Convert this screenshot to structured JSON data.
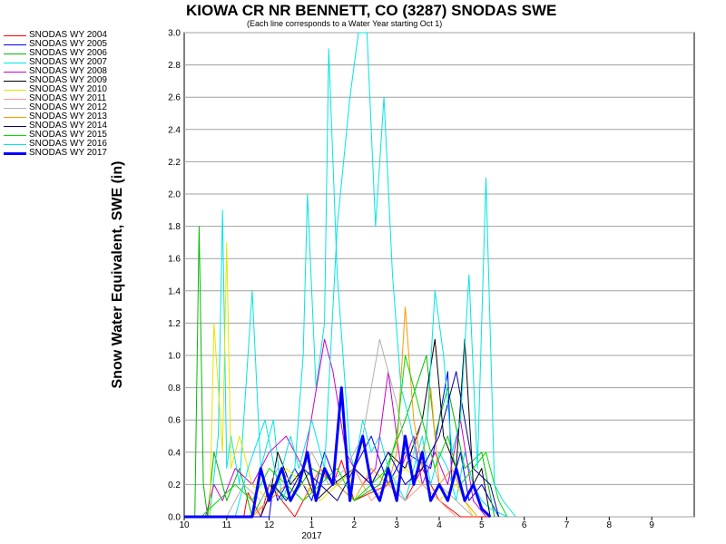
{
  "chart_data": {
    "type": "line",
    "title": "KIOWA CR NR BENNETT, CO (3287) SNODAS SWE",
    "subtitle": "(Each line corresponds to a Water Year starting Oct 1)",
    "ylabel": "Snow Water Equivalent, SWE (in)",
    "xlabel": "",
    "year_label": "2017",
    "ylim": [
      0,
      3.0
    ],
    "xlim": [
      10,
      22
    ],
    "grid": true,
    "legend_position": "left",
    "y_ticks": [
      "0.0",
      "0.2",
      "0.4",
      "0.6",
      "0.8",
      "1.0",
      "1.2",
      "1.4",
      "1.6",
      "1.8",
      "2.0",
      "2.2",
      "2.4",
      "2.6",
      "2.8",
      "3.0"
    ],
    "x_ticks": [
      "10",
      "11",
      "12",
      "1",
      "2",
      "3",
      "4",
      "5",
      "6",
      "7",
      "8",
      "9"
    ],
    "series": [
      {
        "name": "SNODAS WY 2004",
        "color": "#ff0000",
        "width": 1,
        "x": [
          10,
          11.4,
          11.5,
          11.6,
          11.8,
          12.0,
          12.3,
          12.6,
          13.2,
          13.5,
          13.7,
          14.0,
          14.8,
          15.2,
          15.6,
          16.0,
          16.5,
          16.9,
          17.2
        ],
        "y": [
          0,
          0,
          0.15,
          0.1,
          0,
          0.2,
          0.1,
          0,
          0.3,
          0.2,
          0.35,
          0.1,
          0.2,
          0.1,
          0.3,
          0.1,
          0,
          0,
          0
        ]
      },
      {
        "name": "SNODAS WY 2005",
        "color": "#0000ff",
        "width": 1,
        "x": [
          10,
          12.0,
          12.1,
          12.2,
          12.6,
          13.0,
          13.3,
          13.6,
          14.0,
          14.4,
          14.8,
          15.2,
          15.8,
          16.2,
          16.3,
          16.5,
          16.7,
          17.0,
          17.4
        ],
        "y": [
          0,
          0,
          0.2,
          0.1,
          0.3,
          0.1,
          0.4,
          0.2,
          0.3,
          0.5,
          0.2,
          0.4,
          0.3,
          0.9,
          0.2,
          0.4,
          0.1,
          0.2,
          0
        ]
      },
      {
        "name": "SNODAS WY 2006",
        "color": "#00bb00",
        "width": 1,
        "x": [
          10,
          10.25,
          10.35,
          10.45,
          10.55,
          10.7,
          11.0,
          11.3,
          11.6,
          12.0,
          12.5,
          13.0,
          13.6,
          14.0,
          14.6,
          15.2,
          15.7,
          15.9,
          16.2,
          16.6,
          17.0,
          17.3
        ],
        "y": [
          0,
          0,
          1.8,
          0.2,
          0,
          0.4,
          0.1,
          0.3,
          0,
          0.2,
          0.1,
          0.3,
          0.2,
          0.1,
          0.2,
          0.6,
          1.0,
          0.5,
          0.8,
          0.3,
          0.4,
          0
        ]
      },
      {
        "name": "SNODAS WY 2007",
        "color": "#00e5e5",
        "width": 1,
        "x": [
          10,
          10.6,
          10.8,
          10.9,
          11.0,
          11.1,
          11.3,
          11.6,
          11.8,
          12.1,
          12.3,
          12.6,
          12.8,
          12.9,
          13.1,
          13.3,
          13.4,
          13.6,
          13.9,
          14.0,
          14.2,
          14.4,
          14.6,
          14.8,
          15.0,
          15.2,
          15.4,
          15.6,
          15.8,
          16.0,
          16.2,
          16.4,
          16.6,
          16.8,
          17.0,
          17.2,
          17.6
        ],
        "y": [
          0,
          0,
          0.5,
          1.9,
          0.3,
          0.5,
          0.2,
          1.4,
          0.3,
          0.6,
          0.1,
          0.3,
          1.0,
          2.0,
          0.8,
          1.2,
          2.9,
          1.5,
          0.4,
          0.3,
          0.6,
          0.4,
          0.5,
          0.3,
          0.2,
          0.1,
          0.3,
          0.5,
          0.2,
          0.4,
          0.3,
          0.1,
          0.4,
          0.2,
          0.1,
          0.05,
          0
        ]
      },
      {
        "name": "SNODAS WY 2008",
        "color": "#cc00cc",
        "width": 1,
        "x": [
          10,
          10.5,
          10.7,
          10.9,
          11.2,
          11.6,
          12.0,
          12.4,
          12.8,
          13.3,
          13.5,
          13.8,
          14.2,
          14.5,
          14.8,
          15.1,
          15.4,
          15.6,
          15.9,
          16.2,
          16.5,
          16.8,
          17.1
        ],
        "y": [
          0,
          0,
          0.2,
          0.1,
          0.3,
          0.2,
          0.4,
          0.5,
          0.3,
          1.1,
          0.9,
          0.4,
          0.2,
          0.3,
          0.9,
          0.3,
          0.5,
          0.2,
          0.4,
          0.2,
          0.6,
          0.1,
          0
        ]
      },
      {
        "name": "SNODAS WY 2009",
        "color": "#000000",
        "width": 1,
        "x": [
          10,
          11.6,
          11.8,
          12.0,
          12.2,
          12.5,
          12.8,
          13.1,
          13.5,
          14.0,
          14.4,
          14.8,
          15.2,
          15.6,
          15.9,
          16.1,
          16.4,
          16.6,
          16.8,
          17.0,
          17.2
        ],
        "y": [
          0,
          0,
          0.3,
          0.1,
          0.4,
          0.2,
          0.3,
          0.1,
          0.2,
          0.3,
          0.2,
          0.4,
          0.3,
          0.6,
          1.1,
          0.5,
          0.3,
          1.1,
          0.2,
          0.3,
          0
        ]
      },
      {
        "name": "SNODAS WY 2010",
        "color": "#e5e500",
        "width": 1,
        "x": [
          10,
          10.6,
          10.7,
          10.9,
          11.0,
          11.1,
          11.3,
          11.6,
          12.0,
          12.4,
          12.8,
          13.2,
          13.6,
          14.0,
          14.4,
          14.8,
          15.2,
          15.6,
          16.0,
          16.4,
          16.8
        ],
        "y": [
          0,
          0,
          1.2,
          0.4,
          1.7,
          0.3,
          0.5,
          0.2,
          0.1,
          0.3,
          0.2,
          0.1,
          0.2,
          0.3,
          0.1,
          0.2,
          0.3,
          0.2,
          0.1,
          0.2,
          0
        ]
      },
      {
        "name": "SNODAS WY 2011",
        "color": "#ff9999",
        "width": 1,
        "x": [
          10,
          11.5,
          12.0,
          12.4,
          12.8,
          13.2,
          13.6,
          14.0,
          14.4,
          14.8,
          15.2,
          15.6,
          16.0,
          16.4
        ],
        "y": [
          0,
          0,
          0.1,
          0.2,
          0.1,
          0.2,
          0.1,
          0.3,
          0.1,
          0.2,
          0.1,
          0.2,
          0.1,
          0
        ]
      },
      {
        "name": "SNODAS WY 2012",
        "color": "#b0b0b0",
        "width": 1,
        "x": [
          10,
          11.0,
          11.4,
          11.8,
          12.2,
          12.6,
          13.0,
          13.4,
          13.8,
          14.2,
          14.6,
          15.0,
          15.3,
          15.6,
          16.0,
          16.4,
          16.8
        ],
        "y": [
          0,
          0,
          0.2,
          0.1,
          0.3,
          0.2,
          0.4,
          0.2,
          0.3,
          0.5,
          1.1,
          0.7,
          0.3,
          0.6,
          0.2,
          0.1,
          0
        ]
      },
      {
        "name": "SNODAS WY 2013",
        "color": "#ff9900",
        "width": 1,
        "x": [
          10,
          11.6,
          12.0,
          12.4,
          12.8,
          13.2,
          13.6,
          14.0,
          14.4,
          14.8,
          15.0,
          15.2,
          15.4,
          15.6,
          15.8,
          16.0,
          16.3,
          16.6,
          16.9
        ],
        "y": [
          0,
          0,
          0.1,
          0.2,
          0.1,
          0.3,
          0.2,
          0.1,
          0.3,
          0.2,
          0.4,
          1.3,
          0.6,
          0.3,
          0.8,
          0.2,
          0.3,
          0.1,
          0
        ]
      },
      {
        "name": "SNODAS WY 2014",
        "color": "#000099",
        "width": 1,
        "x": [
          10,
          11.8,
          12.1,
          12.4,
          12.8,
          13.2,
          13.6,
          14.0,
          14.4,
          14.8,
          15.2,
          15.6,
          16.0,
          16.4,
          16.8,
          17.2,
          17.4
        ],
        "y": [
          0,
          0,
          0.2,
          0.1,
          0.3,
          0.2,
          0.1,
          0.3,
          0.2,
          0.4,
          0.2,
          0.3,
          0.5,
          0.9,
          0.3,
          0.2,
          0
        ]
      },
      {
        "name": "SNODAS WY 2015",
        "color": "#00dd00",
        "width": 1,
        "x": [
          10,
          10.4,
          10.8,
          11.2,
          11.6,
          12.0,
          12.4,
          12.8,
          13.2,
          13.6,
          14.0,
          14.4,
          14.8,
          15.0,
          15.2,
          15.4,
          15.6,
          15.9,
          16.2,
          16.5,
          16.8,
          17.1,
          17.4,
          17.6
        ],
        "y": [
          0,
          0,
          0.1,
          0.2,
          0.1,
          0.3,
          0.2,
          0.1,
          0.2,
          0.3,
          0.1,
          0.2,
          0.3,
          0.5,
          1.0,
          0.8,
          0.6,
          0.3,
          0.5,
          0.2,
          0.3,
          0.4,
          0.1,
          0
        ]
      },
      {
        "name": "SNODAS WY 2016",
        "color": "#00e5e5",
        "width": 1,
        "x": [
          10,
          11.2,
          11.5,
          11.9,
          12.2,
          12.5,
          12.7,
          13.0,
          13.3,
          13.6,
          13.9,
          14.1,
          14.3,
          14.5,
          14.7,
          14.9,
          15.1,
          15.3,
          15.5,
          15.7,
          15.9,
          16.1,
          16.3,
          16.5,
          16.7,
          16.9,
          17.1,
          17.3,
          17.5,
          17.8
        ],
        "y": [
          0,
          0,
          0.3,
          0.6,
          0.2,
          0.5,
          0.3,
          0.6,
          0.3,
          1.8,
          2.6,
          3.0,
          3.0,
          1.8,
          2.6,
          1.5,
          0.8,
          0.6,
          0.3,
          0.5,
          1.4,
          1.0,
          0.4,
          0.6,
          1.5,
          0.3,
          2.1,
          0.2,
          0.1,
          0
        ]
      },
      {
        "name": "SNODAS WY 2017",
        "color": "#0000ff",
        "width": 3,
        "x": [
          10,
          11.6,
          11.8,
          12.0,
          12.3,
          12.5,
          12.7,
          12.9,
          13.1,
          13.3,
          13.5,
          13.7,
          13.9,
          14.0,
          14.2,
          14.4,
          14.6,
          14.8,
          15.0,
          15.2,
          15.4,
          15.6,
          15.8,
          16.0,
          16.2,
          16.4,
          16.6,
          16.8,
          17.0,
          17.2
        ],
        "y": [
          0,
          0,
          0.3,
          0.1,
          0.3,
          0.1,
          0.2,
          0.4,
          0.1,
          0.3,
          0.2,
          0.8,
          0.1,
          0.3,
          0.5,
          0.2,
          0.1,
          0.3,
          0.1,
          0.5,
          0.2,
          0.4,
          0.1,
          0.2,
          0.1,
          0.3,
          0.1,
          0.2,
          0.05,
          0
        ]
      }
    ]
  }
}
